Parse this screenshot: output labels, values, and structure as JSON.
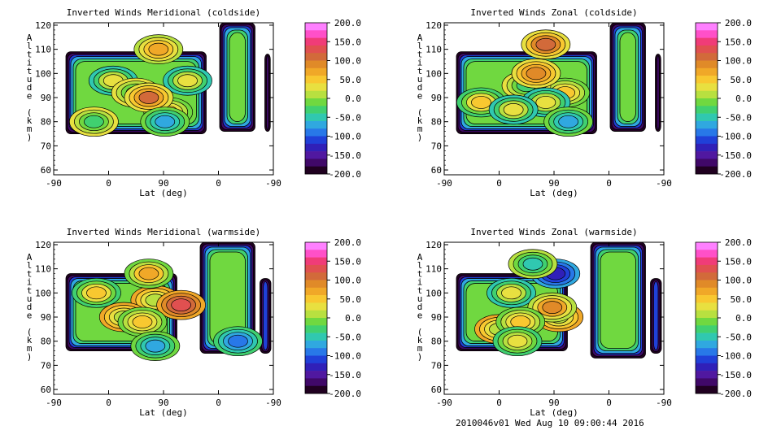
{
  "footer": "2010046v01 Wed Aug 10 09:00:44 2016",
  "colorbar": {
    "labels": [
      "200.0",
      "150.0",
      "100.0",
      "50.0",
      "0.0",
      "-50.0",
      "-100.0",
      "-150.0",
      "-200.0"
    ],
    "colors": [
      "#ff80ff",
      "#ff50c8",
      "#f03c78",
      "#e05050",
      "#d26a3a",
      "#e08a28",
      "#f0a828",
      "#f8c830",
      "#e8e040",
      "#b8e040",
      "#70d840",
      "#40d070",
      "#30c8b0",
      "#30a8e0",
      "#2878e8",
      "#2040d8",
      "#3020b8",
      "#5018a0",
      "#400868",
      "#200020"
    ]
  },
  "chart_data": [
    {
      "type": "contour",
      "title": "Inverted Winds Meridional (coldside)",
      "xlabel": "Lat (deg)",
      "ylabel": "Altitude (km)",
      "xticks": [
        "-90",
        "0",
        "90",
        "0",
        "-90"
      ],
      "yticks": [
        "60",
        "70",
        "80",
        "90",
        "100",
        "110",
        "120"
      ],
      "ylim": [
        58,
        121
      ],
      "clim": [
        -200,
        200
      ],
      "regions": [
        {
          "x0": -130,
          "x1": 80,
          "y0": 75,
          "y1": 109
        },
        {
          "x0": 90,
          "x1": 50,
          "y0": 76,
          "y1": 121
        },
        {
          "x0": 135,
          "x1": 130,
          "y0": 76,
          "y1": 108
        }
      ],
      "features": [
        {
          "x": 40,
          "y": 84,
          "v": 60
        },
        {
          "x": -45,
          "y": 97,
          "v": 30
        },
        {
          "x": -10,
          "y": 92,
          "v": -25
        },
        {
          "x": 70,
          "y": 97,
          "v": 30
        },
        {
          "x": 10,
          "y": 90,
          "v": 105
        },
        {
          "x": 25,
          "y": 110,
          "v": 80
        },
        {
          "x": 35,
          "y": 80,
          "v": -60
        },
        {
          "x": -75,
          "y": 80,
          "v": -20
        }
      ]
    },
    {
      "type": "contour",
      "title": "Inverted Winds Zonal (coldside)",
      "xlabel": "Lat (deg)",
      "ylabel": "Altitude (km)",
      "xticks": [
        "-90",
        "0",
        "90",
        "0",
        "-90"
      ],
      "yticks": [
        "60",
        "70",
        "80",
        "90",
        "100",
        "110",
        "120"
      ],
      "ylim": [
        58,
        121
      ],
      "clim": [
        -200,
        200
      ],
      "regions": [
        {
          "x0": -130,
          "x1": 80,
          "y0": 75,
          "y1": 109
        },
        {
          "x0": 90,
          "x1": 50,
          "y0": 76,
          "y1": 121
        },
        {
          "x0": 135,
          "x1": 130,
          "y0": 76,
          "y1": 108
        }
      ],
      "features": [
        {
          "x": 50,
          "y": 92,
          "v": 60
        },
        {
          "x": -80,
          "y": 88,
          "v": 50
        },
        {
          "x": -10,
          "y": 95,
          "v": -30
        },
        {
          "x": 20,
          "y": 112,
          "v": 110
        },
        {
          "x": 5,
          "y": 100,
          "v": 100
        },
        {
          "x": 20,
          "y": 88,
          "v": 30
        },
        {
          "x": 55,
          "y": 80,
          "v": -60
        },
        {
          "x": -30,
          "y": 85,
          "v": 30
        }
      ]
    },
    {
      "type": "contour",
      "title": "Inverted Winds Meridional (warmside)",
      "xlabel": "Lat (deg)",
      "ylabel": "Altitude (km)",
      "xticks": [
        "-90",
        "0",
        "90",
        "0",
        "-90"
      ],
      "yticks": [
        "60",
        "70",
        "80",
        "90",
        "100",
        "110",
        "120"
      ],
      "ylim": [
        58,
        121
      ],
      "clim": [
        -200,
        200
      ],
      "regions": [
        {
          "x0": -130,
          "x1": 75,
          "y0": 76,
          "y1": 108
        },
        {
          "x0": 125,
          "x1": 45,
          "y0": 75,
          "y1": 121
        },
        {
          "x0": 140,
          "x1": 115,
          "y0": 75,
          "y1": 106
        }
      ],
      "features": [
        {
          "x": -60,
          "y": 100,
          "v": 50
        },
        {
          "x": 20,
          "y": 97,
          "v": 20
        },
        {
          "x": 60,
          "y": 95,
          "v": 140
        },
        {
          "x": -15,
          "y": 90,
          "v": 10
        },
        {
          "x": 0,
          "y": 88,
          "v": 60
        },
        {
          "x": 10,
          "y": 108,
          "v": 70
        },
        {
          "x": 20,
          "y": 78,
          "v": -60
        },
        {
          "x": 122,
          "y": 80,
          "v": -90
        }
      ]
    },
    {
      "type": "contour",
      "title": "Inverted Winds Zonal (warmside)",
      "xlabel": "Lat (deg)",
      "ylabel": "Altitude (km)",
      "xticks": [
        "-90",
        "0",
        "90",
        "0",
        "-90"
      ],
      "yticks": [
        "60",
        "70",
        "80",
        "90",
        "100",
        "110",
        "120"
      ],
      "ylim": [
        58,
        121
      ],
      "clim": [
        -200,
        200
      ],
      "regions": [
        {
          "x0": -130,
          "x1": 75,
          "y0": 76,
          "y1": 108
        },
        {
          "x0": 125,
          "x1": 45,
          "y0": 73,
          "y1": 121
        },
        {
          "x0": 140,
          "x1": 115,
          "y0": 75,
          "y1": 106
        }
      ],
      "features": [
        {
          "x": -20,
          "y": 100,
          "v": 30
        },
        {
          "x": 40,
          "y": 90,
          "v": 20
        },
        {
          "x": -40,
          "y": 85,
          "v": 10
        },
        {
          "x": 35,
          "y": 108,
          "v": -120
        },
        {
          "x": 30,
          "y": 94,
          "v": 90
        },
        {
          "x": -5,
          "y": 88,
          "v": 60
        },
        {
          "x": -10,
          "y": 80,
          "v": 40
        },
        {
          "x": 0,
          "y": 112,
          "v": -50
        }
      ]
    }
  ]
}
